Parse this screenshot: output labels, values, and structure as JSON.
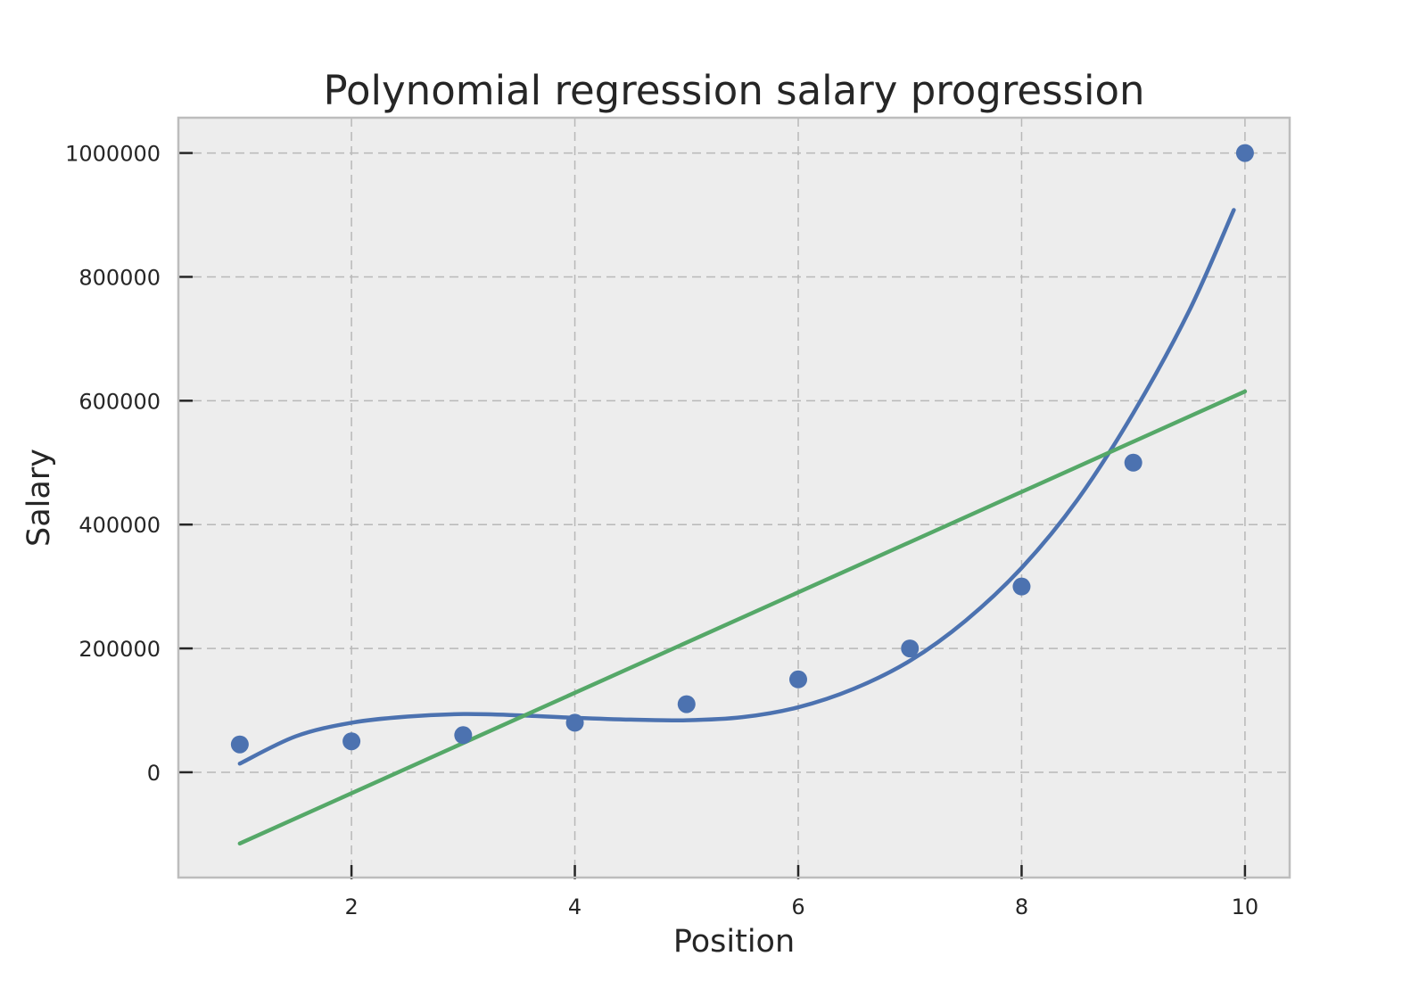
{
  "chart_data": {
    "type": "scatter",
    "title": "Polynomial regression salary progression",
    "xlabel": "Position",
    "ylabel": "Salary",
    "xlim": [
      0.45,
      10.4
    ],
    "ylim": [
      -170000,
      1057000
    ],
    "x_ticks": [
      2,
      4,
      6,
      8,
      10
    ],
    "y_ticks": [
      0,
      200000,
      400000,
      600000,
      800000,
      1000000
    ],
    "x_tick_labels": [
      "2",
      "4",
      "6",
      "8",
      "10"
    ],
    "y_tick_labels": [
      "0",
      "200000",
      "400000",
      "600000",
      "800000",
      "1000000"
    ],
    "grid": true,
    "colors": {
      "points": "#4c72b0",
      "polynomial": "#4c72b0",
      "linear": "#55a868",
      "plot_bg": "#ededed",
      "grid": "#b8b8b8",
      "frame": "#bdbdbd"
    },
    "series": [
      {
        "kind": "scatter",
        "x": [
          1,
          2,
          3,
          4,
          5,
          6,
          7,
          8,
          9,
          10
        ],
        "y": [
          45000,
          50000,
          60000,
          80000,
          110000,
          150000,
          200000,
          300000,
          500000,
          1000000
        ]
      },
      {
        "kind": "line",
        "x": [
          1,
          1.5,
          2,
          2.5,
          3,
          3.5,
          4,
          4.5,
          5,
          5.5,
          6,
          6.5,
          7,
          7.5,
          8,
          8.5,
          9,
          9.5,
          9.9
        ],
        "y": [
          14000,
          58000,
          80000,
          90000,
          94000,
          92000,
          88000,
          85000,
          84000,
          89000,
          105000,
          135000,
          180000,
          245000,
          330000,
          440000,
          580000,
          745000,
          908000
        ]
      },
      {
        "kind": "line",
        "x": [
          1,
          10
        ],
        "y": [
          -115000,
          615000
        ]
      }
    ]
  }
}
